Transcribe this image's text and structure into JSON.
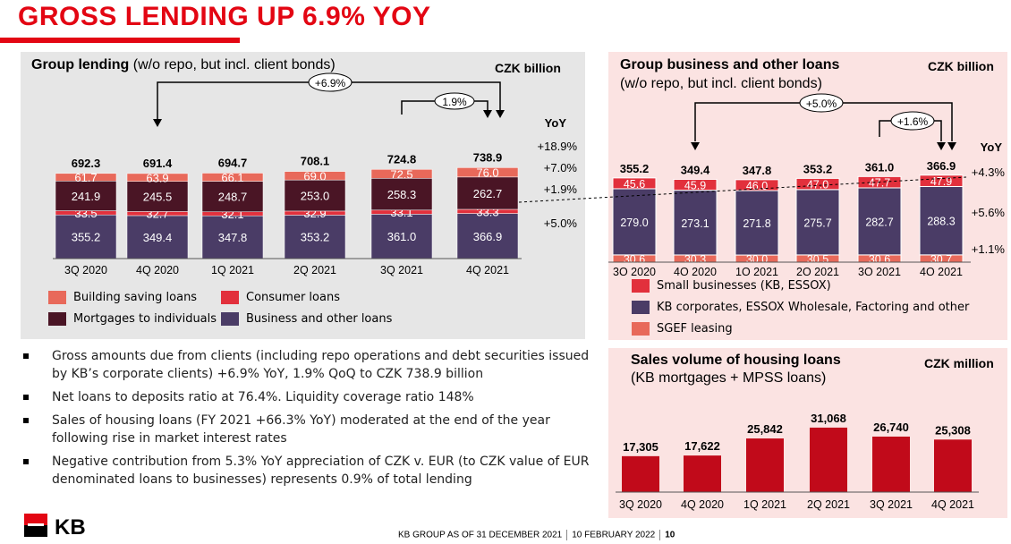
{
  "slide": {
    "title": "GROSS LENDING UP 6.9% YOY",
    "footer_text": "KB GROUP AS OF 31 DECEMBER 2021",
    "footer_date": "10 FEBRUARY 2022",
    "page_number": "10",
    "logo_text": "KB"
  },
  "colors": {
    "brand_red": "#e30613",
    "building_saving": "#e8695a",
    "consumer": "#e2303c",
    "mortgages": "#4a1525",
    "business": "#4a3c66",
    "kb_corporates": "#4a3c66",
    "small_businesses": "#e2303c",
    "sgef": "#e8695a",
    "housing_bars": "#c10a1a"
  },
  "panels": {
    "lending": {
      "title_bold": "Group lending",
      "title_rest": " (w/o repo, but incl. client bonds)",
      "unit": "CZK billion",
      "yoy_header": "YoY"
    },
    "business": {
      "title_line1": "Group business and other loans",
      "title_line2": "(w/o repo, but incl. client bonds)",
      "unit": "CZK billion",
      "yoy_header": "YoY"
    },
    "housing": {
      "title_line1": "Sales volume of housing loans",
      "title_line2": "(KB mortgages + MPSS loans)",
      "unit": "CZK million"
    }
  },
  "legend_lending": [
    {
      "label": "Building saving loans",
      "color": "#e8695a"
    },
    {
      "label": "Consumer loans",
      "color": "#e2303c"
    },
    {
      "label": "Mortgages to individuals",
      "color": "#4a1525"
    },
    {
      "label": "Business and other loans",
      "color": "#4a3c66"
    }
  ],
  "legend_business": [
    {
      "label": "Small businesses (KB, ESSOX)",
      "color": "#e2303c"
    },
    {
      "label": "KB corporates, ESSOX Wholesale, Factoring and other",
      "color": "#4a3c66"
    },
    {
      "label": "SGEF leasing",
      "color": "#e8695a"
    }
  ],
  "bullets": [
    "Gross amounts due from clients (including repo operations and debt securities issued by KB’s corporate clients) +6.9% YoY, 1.9% QoQ to CZK 738.9 billion",
    "Net loans to deposits ratio at 76.4%. Liquidity coverage ratio 148%",
    "Sales of housing loans (FY 2021 +66.3% YoY) moderated at the end of the year following rise in market interest rates",
    "Negative contribution from 5.3% YoY appreciation of CZK v. EUR (to CZK value of EUR denominated loans to businesses) represents 0.9% of total lending"
  ],
  "chart_data": [
    {
      "type": "bar",
      "stacked": true,
      "categories": [
        "3Q 2020",
        "4Q 2020",
        "1Q 2021",
        "2Q 2021",
        "3Q 2021",
        "4Q 2021"
      ],
      "series": [
        {
          "name": "Business and other loans",
          "values": [
            355.2,
            349.4,
            347.8,
            353.2,
            361.0,
            366.9
          ],
          "labels": [
            "355.2",
            "349.4",
            "347.8",
            "353.2",
            "361.0",
            "366.9"
          ],
          "yoy": "+5.0%"
        },
        {
          "name": "Consumer loans",
          "values": [
            33.5,
            32.7,
            32.1,
            32.9,
            33.1,
            33.3
          ],
          "labels": [
            "33.5",
            "32.7",
            "32.1",
            "32.9",
            "33.1",
            "33.3"
          ],
          "yoy": "+1.9%"
        },
        {
          "name": "Mortgages to individuals",
          "values": [
            241.9,
            245.5,
            248.7,
            253.0,
            258.3,
            262.7
          ],
          "labels": [
            "241.9",
            "245.5",
            "248.7",
            "253.0",
            "258.3",
            "262.7"
          ],
          "yoy": "+7.0%"
        },
        {
          "name": "Building saving loans",
          "values": [
            61.7,
            63.9,
            66.1,
            69.0,
            72.5,
            76.0
          ],
          "labels": [
            "61.7",
            "63.9",
            "66.1",
            "69.0",
            "72.5",
            "76.0"
          ],
          "yoy": "+18.9%"
        }
      ],
      "totals": [
        "692.3",
        "691.4",
        "694.7",
        "708.1",
        "724.8",
        "738.9"
      ],
      "annotations": [
        {
          "text": "+6.9%",
          "from": "4Q 2020",
          "to": "4Q 2021"
        },
        {
          "text": "1.9%",
          "from": "3Q 2021",
          "to": "4Q 2021"
        }
      ]
    },
    {
      "type": "bar",
      "stacked": true,
      "categories": [
        "3Q 2020",
        "4Q 2020",
        "1Q 2021",
        "2Q 2021",
        "3Q 2021",
        "4Q 2021"
      ],
      "series": [
        {
          "name": "SGEF leasing",
          "values": [
            30.6,
            30.3,
            30.0,
            30.5,
            30.6,
            30.7
          ],
          "labels": [
            "30.6",
            "30.3",
            "30.0",
            "30.5",
            "30.6",
            "30.7"
          ],
          "yoy": "+1.1%"
        },
        {
          "name": "KB corporates, ESSOX Wholesale, Factoring and other",
          "values": [
            279.0,
            273.1,
            271.8,
            275.7,
            282.7,
            288.3
          ],
          "labels": [
            "279.0",
            "273.1",
            "271.8",
            "275.7",
            "282.7",
            "288.3"
          ],
          "yoy": "+5.6%"
        },
        {
          "name": "Small businesses (KB, ESSOX)",
          "values": [
            45.6,
            45.9,
            46.0,
            47.0,
            47.7,
            47.9
          ],
          "labels": [
            "45.6",
            "45.9",
            "46.0",
            "47.0",
            "47.7",
            "47.9"
          ],
          "yoy": "+4.3%"
        }
      ],
      "totals": [
        "355.2",
        "349.4",
        "347.8",
        "353.2",
        "361.0",
        "366.9"
      ],
      "annotations": [
        {
          "text": "+5.0%",
          "from": "4Q 2020",
          "to": "4Q 2021"
        },
        {
          "text": "+1.6%",
          "from": "3Q 2021",
          "to": "4Q 2021"
        }
      ]
    },
    {
      "type": "bar",
      "categories": [
        "3Q 2020",
        "4Q 2020",
        "1Q 2021",
        "2Q 2021",
        "3Q 2021",
        "4Q 2021"
      ],
      "values": [
        17305,
        17622,
        25842,
        31068,
        26740,
        25308
      ],
      "labels": [
        "17,305",
        "17,622",
        "25,842",
        "31,068",
        "26,740",
        "25,308"
      ]
    }
  ]
}
